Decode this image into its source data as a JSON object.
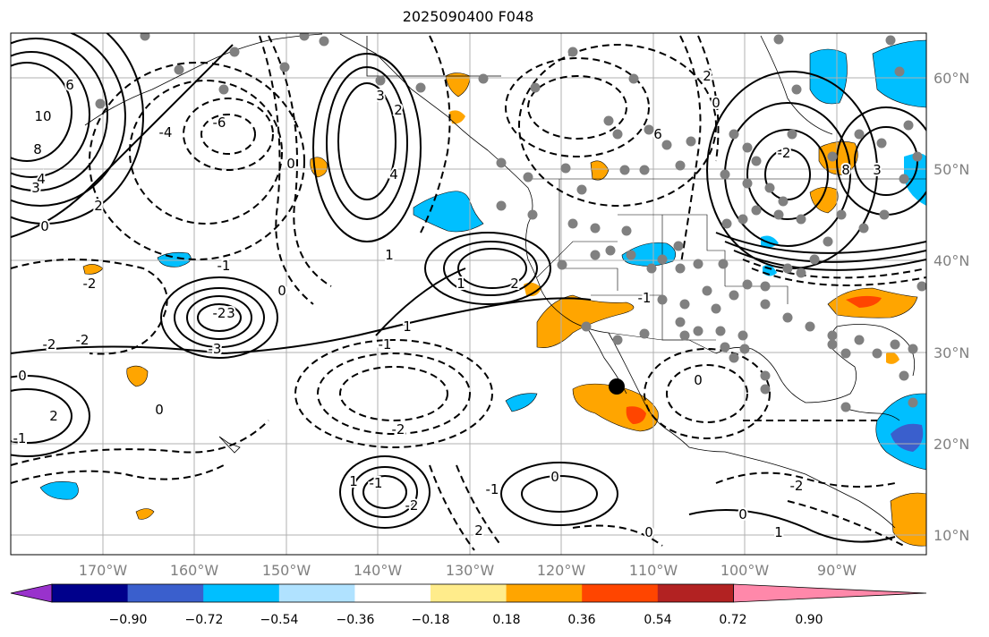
{
  "title": "2025090400 F048",
  "map": {
    "lon_range": [
      -180,
      -80
    ],
    "lat_range": [
      7,
      65
    ],
    "lon_ticks": [
      "170°W",
      "160°W",
      "150°W",
      "140°W",
      "130°W",
      "120°W",
      "110°W",
      "100°W",
      "90°W"
    ],
    "lat_ticks": [
      "60°N",
      "50°N",
      "40°N",
      "30°N",
      "20°N",
      "10°N"
    ],
    "grid": true
  },
  "colorbar": {
    "ticks": [
      "−0.90",
      "−0.72",
      "−0.54",
      "−0.36",
      "−0.18",
      "0.18",
      "0.36",
      "0.54",
      "0.72",
      "0.90"
    ],
    "colors": [
      "#9932cc",
      "#00008b",
      "#3a5fcd",
      "#00bfff",
      "#b0e2ff",
      "#ffffff",
      "#ffec8b",
      "#ffa500",
      "#ff4500",
      "#b22222",
      "#ff88aa"
    ]
  },
  "contour_labels": [
    "6",
    "10",
    "8",
    "4",
    "3",
    "0",
    "2",
    "-6",
    "-4",
    "-2",
    "4",
    "3",
    "2",
    "0",
    "1",
    "-1",
    "-2",
    "3",
    "-3",
    "-2",
    "-2",
    "2",
    "0",
    "-2",
    "-1",
    "1",
    "0",
    "1",
    "2",
    "-1",
    "0",
    "0",
    "-2",
    "1",
    "0",
    "-1",
    "0",
    "2",
    "-1",
    "1",
    "-2",
    "2",
    "0",
    "6",
    "8",
    "3",
    "-2",
    "-1",
    "0"
  ],
  "legend_shading": {
    "orange": "#ffa500",
    "light_blue": "#00bfff",
    "red": "#ff4500",
    "blue": "#3a5fcd",
    "station_dots": "#808080",
    "marker": "#000000"
  }
}
